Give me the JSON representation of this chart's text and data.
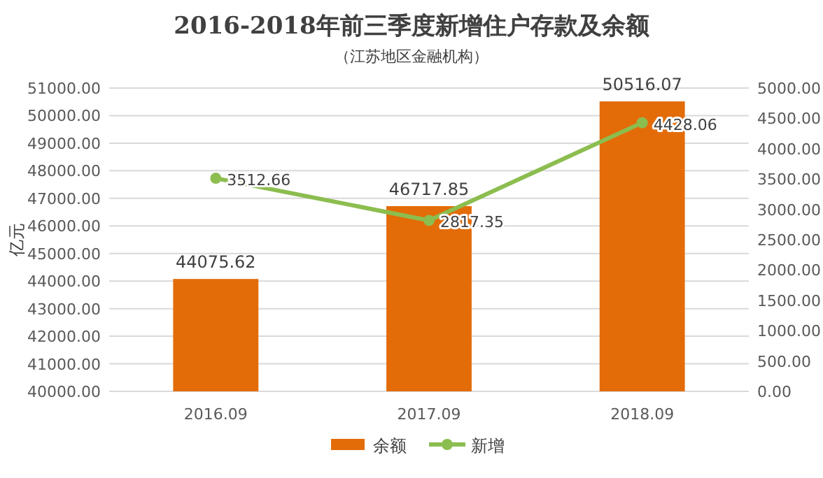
{
  "chart_data": {
    "type": "bar",
    "title": "2016-2018年前三季度新增住户存款及余额",
    "subtitle": "（江苏地区金融机构）",
    "ylabel": "亿元",
    "categories": [
      "2016.09",
      "2017.09",
      "2018.09"
    ],
    "series": [
      {
        "name": "余额",
        "color": "#e36c09",
        "values": [
          44075.62,
          46717.85,
          50516.07
        ]
      },
      {
        "name": "新增",
        "type": "line",
        "axis": "y2",
        "color": "#8cbd4f",
        "values": [
          3512.66,
          2817.35,
          4428.06
        ]
      }
    ],
    "ylim": [
      40000,
      51000
    ],
    "yticks": [
      {
        "value": 40000,
        "label": "40000.00"
      },
      {
        "value": 41000,
        "label": "41000.00"
      },
      {
        "value": 42000,
        "label": "42000.00"
      },
      {
        "value": 43000,
        "label": "43000.00"
      },
      {
        "value": 44000,
        "label": "44000.00"
      },
      {
        "value": 45000,
        "label": "45000.00"
      },
      {
        "value": 46000,
        "label": "46000.00"
      },
      {
        "value": 47000,
        "label": "47000.00"
      },
      {
        "value": 48000,
        "label": "48000.00"
      },
      {
        "value": 49000,
        "label": "49000.00"
      },
      {
        "value": 50000,
        "label": "50000.00"
      },
      {
        "value": 51000,
        "label": "51000.00"
      }
    ],
    "y2lim": [
      0,
      5000
    ],
    "y2ticks": [
      {
        "value": 0,
        "label": "0.00"
      },
      {
        "value": 500,
        "label": "500.00"
      },
      {
        "value": 1000,
        "label": "1000.00"
      },
      {
        "value": 1500,
        "label": "1500.00"
      },
      {
        "value": 2000,
        "label": "2000.00"
      },
      {
        "value": 2500,
        "label": "2500.00"
      },
      {
        "value": 3000,
        "label": "3000.00"
      },
      {
        "value": 3500,
        "label": "3500.00"
      },
      {
        "value": 4000,
        "label": "4000.00"
      },
      {
        "value": 4500,
        "label": "4500.00"
      },
      {
        "value": 5000,
        "label": "5000.00"
      }
    ],
    "grid": "y",
    "legend": "bottom",
    "marker": "circle",
    "line_style": "solid",
    "data_labels": true
  }
}
